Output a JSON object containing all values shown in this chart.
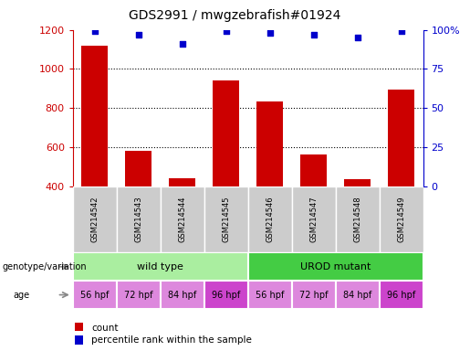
{
  "title": "GDS2991 / mwgzebrafish#01924",
  "samples": [
    "GSM214542",
    "GSM214543",
    "GSM214544",
    "GSM214545",
    "GSM214546",
    "GSM214547",
    "GSM214548",
    "GSM214549"
  ],
  "counts": [
    1120,
    580,
    440,
    940,
    835,
    560,
    435,
    895
  ],
  "percentile_ranks": [
    99,
    97,
    91,
    99,
    98,
    97,
    95,
    99
  ],
  "ylim_left": [
    400,
    1200
  ],
  "ylim_right": [
    0,
    100
  ],
  "yticks_left": [
    400,
    600,
    800,
    1000,
    1200
  ],
  "yticks_right": [
    0,
    25,
    50,
    75,
    100
  ],
  "bar_color": "#cc0000",
  "dot_color": "#0000cc",
  "genotype_groups": [
    {
      "label": "wild type",
      "start": 0,
      "end": 4,
      "color": "#aaeea0"
    },
    {
      "label": "UROD mutant",
      "start": 4,
      "end": 8,
      "color": "#44cc44"
    }
  ],
  "age_labels": [
    "56 hpf",
    "72 hpf",
    "84 hpf",
    "96 hpf",
    "56 hpf",
    "72 hpf",
    "84 hpf",
    "96 hpf"
  ],
  "age_highlight": [
    3,
    7
  ],
  "age_color_normal": "#dd88dd",
  "age_color_highlight": "#cc44cc",
  "legend_count": "count",
  "legend_pct": "percentile rank within the sample",
  "genotype_label": "genotype/variation",
  "age_label": "age",
  "bg_color": "#ffffff",
  "bar_color_legend": "#cc0000",
  "dot_color_legend": "#0000cc",
  "tick_color_left": "#cc0000",
  "tick_color_right": "#0000cc",
  "sample_bg_color": "#cccccc",
  "grid_yticks": [
    600,
    800,
    1000
  ]
}
